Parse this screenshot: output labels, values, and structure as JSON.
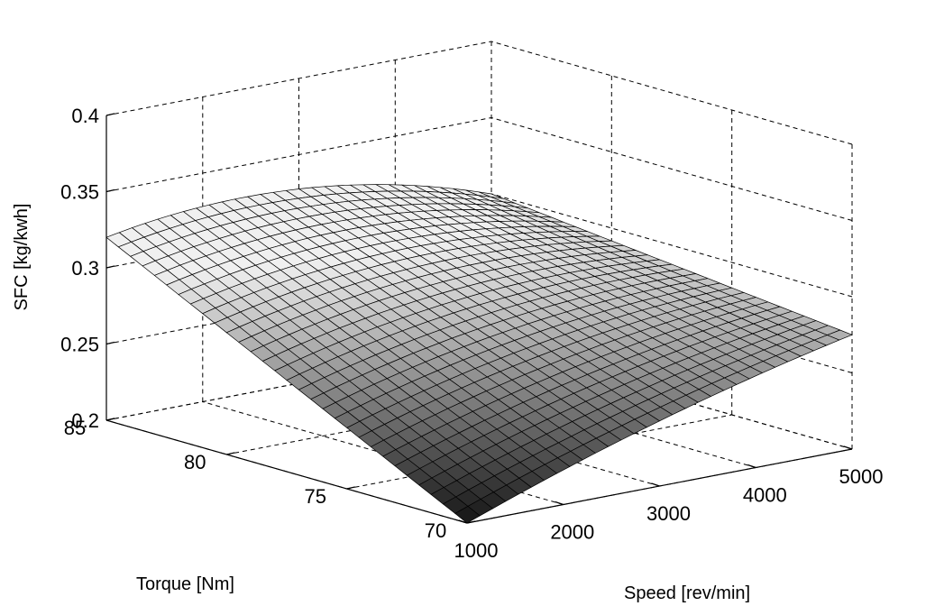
{
  "chart_data": {
    "type": "surface",
    "title": "",
    "xlabel": "Speed [rev/min]",
    "ylabel": "Torque [Nm]",
    "zlabel": "SFC [kg/kwh]",
    "xlim": [
      1000,
      5000
    ],
    "ylim": [
      70,
      85
    ],
    "zlim": [
      0.2,
      0.4
    ],
    "x_ticks": [
      "1000",
      "2000",
      "3000",
      "4000",
      "5000"
    ],
    "y_ticks": [
      "70",
      "75",
      "80",
      "85"
    ],
    "z_ticks": [
      "0.2",
      "0.25",
      "0.3",
      "0.35",
      "0.4"
    ],
    "grid": true,
    "colormap": "gray",
    "corner_values": [
      {
        "speed": 1000,
        "torque": 70,
        "sfc": 0.2
      },
      {
        "speed": 1000,
        "torque": 85,
        "sfc": 0.32
      },
      {
        "speed": 5000,
        "torque": 70,
        "sfc": 0.275
      },
      {
        "speed": 5000,
        "torque": 85,
        "sfc": 0.3
      }
    ],
    "grid_size": 31
  }
}
